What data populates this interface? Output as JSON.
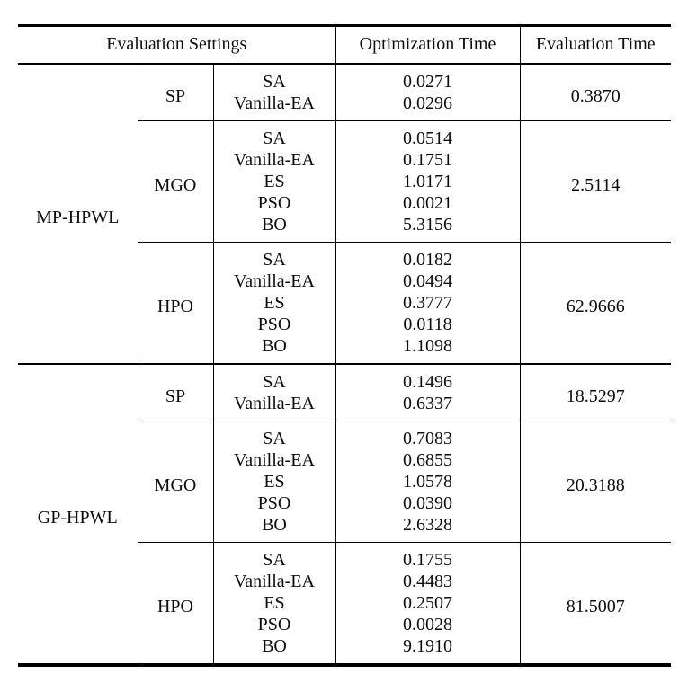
{
  "table": {
    "headers": {
      "settings": "Evaluation Settings",
      "optimization": "Optimization Time",
      "evaluation": "Evaluation Time"
    },
    "groups": [
      {
        "label": "MP-HPWL",
        "blocks": [
          {
            "setting": "SP",
            "eval": "0.3870",
            "rows": [
              {
                "method": "SA",
                "opt": "0.0271"
              },
              {
                "method": "Vanilla-EA",
                "opt": "0.0296"
              }
            ]
          },
          {
            "setting": "MGO",
            "eval": "2.5114",
            "rows": [
              {
                "method": "SA",
                "opt": "0.0514"
              },
              {
                "method": "Vanilla-EA",
                "opt": "0.1751"
              },
              {
                "method": "ES",
                "opt": "1.0171"
              },
              {
                "method": "PSO",
                "opt": "0.0021"
              },
              {
                "method": "BO",
                "opt": "5.3156"
              }
            ]
          },
          {
            "setting": "HPO",
            "eval": "62.9666",
            "rows": [
              {
                "method": "SA",
                "opt": "0.0182"
              },
              {
                "method": "Vanilla-EA",
                "opt": "0.0494"
              },
              {
                "method": "ES",
                "opt": "0.3777"
              },
              {
                "method": "PSO",
                "opt": "0.0118"
              },
              {
                "method": "BO",
                "opt": "1.1098"
              }
            ]
          }
        ]
      },
      {
        "label": "GP-HPWL",
        "blocks": [
          {
            "setting": "SP",
            "eval": "18.5297",
            "rows": [
              {
                "method": "SA",
                "opt": "0.1496"
              },
              {
                "method": "Vanilla-EA",
                "opt": "0.6337"
              }
            ]
          },
          {
            "setting": "MGO",
            "eval": "20.3188",
            "rows": [
              {
                "method": "SA",
                "opt": "0.7083"
              },
              {
                "method": "Vanilla-EA",
                "opt": "0.6855"
              },
              {
                "method": "ES",
                "opt": "1.0578"
              },
              {
                "method": "PSO",
                "opt": "0.0390"
              },
              {
                "method": "BO",
                "opt": "2.6328"
              }
            ]
          },
          {
            "setting": "HPO",
            "eval": "81.5007",
            "rows": [
              {
                "method": "SA",
                "opt": "0.1755"
              },
              {
                "method": "Vanilla-EA",
                "opt": "0.4483"
              },
              {
                "method": "ES",
                "opt": "0.2507"
              },
              {
                "method": "PSO",
                "opt": "0.0028"
              },
              {
                "method": "BO",
                "opt": "9.1910"
              }
            ]
          }
        ]
      }
    ]
  },
  "colors": {
    "background": "#ffffff",
    "text": "#0c0c0c",
    "rule": "#000000"
  }
}
